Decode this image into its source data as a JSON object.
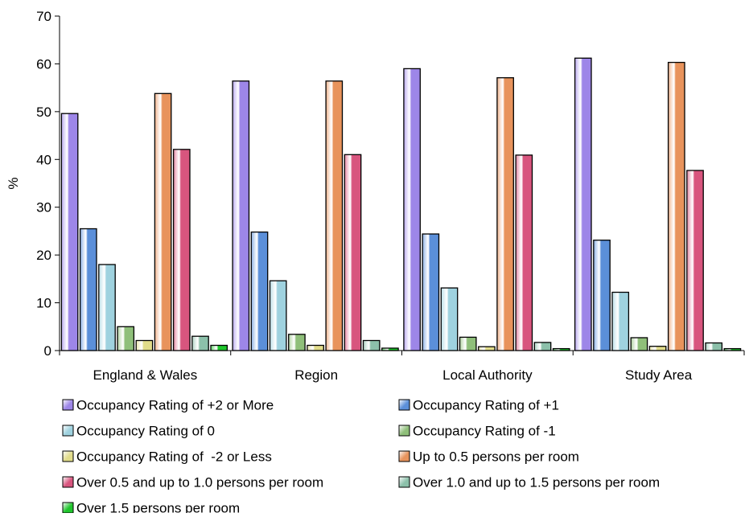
{
  "chart_data": {
    "type": "bar",
    "title": "",
    "xlabel": "",
    "ylabel": "%",
    "ylim": [
      0,
      70
    ],
    "yticks": [
      0,
      10,
      20,
      30,
      40,
      50,
      60,
      70
    ],
    "grid": false,
    "legend_position": "bottom",
    "categories": [
      "England & Wales",
      "Region",
      "Local Authority",
      "Study Area"
    ],
    "series": [
      {
        "name": "Occupancy Rating of +2 or More",
        "color": "#9d86e8",
        "values": [
          49.6,
          56.4,
          59.0,
          61.2
        ]
      },
      {
        "name": "Occupancy Rating of +1",
        "color": "#5b8fd9",
        "values": [
          25.5,
          24.8,
          24.4,
          23.1
        ]
      },
      {
        "name": "Occupancy Rating of 0",
        "color": "#9fd2df",
        "values": [
          18.0,
          14.6,
          13.1,
          12.2
        ]
      },
      {
        "name": "Occupancy Rating of -1",
        "color": "#8fbf7a",
        "values": [
          5.0,
          3.4,
          2.8,
          2.7
        ]
      },
      {
        "name": "Occupancy Rating of  -2 or Less",
        "color": "#e1dc8a",
        "values": [
          2.1,
          1.1,
          0.8,
          0.9
        ]
      },
      {
        "name": "Up to 0.5 persons per room",
        "color": "#e8935c",
        "values": [
          53.8,
          56.4,
          57.1,
          60.3
        ]
      },
      {
        "name": "Over 0.5 and up to 1.0 persons per room",
        "color": "#d8557e",
        "values": [
          42.1,
          41.0,
          40.9,
          37.7
        ]
      },
      {
        "name": "Over 1.0 and up to 1.5 persons per room",
        "color": "#8cc0aa",
        "values": [
          3.0,
          2.1,
          1.7,
          1.6
        ]
      },
      {
        "name": "Over 1.5 persons per room",
        "color": "#1fc62c",
        "values": [
          1.1,
          0.5,
          0.4,
          0.4
        ]
      }
    ]
  }
}
